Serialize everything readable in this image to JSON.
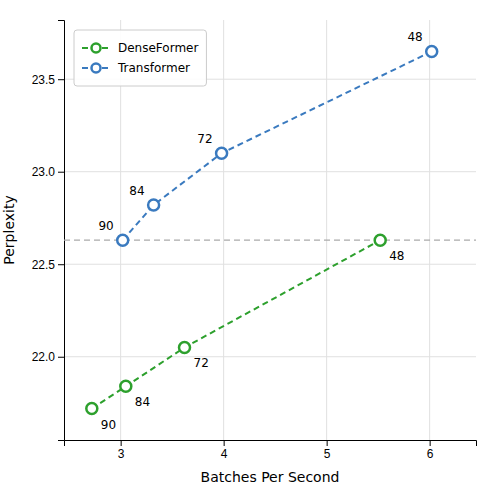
{
  "chart_data": {
    "type": "line",
    "xlabel": "Batches Per Second",
    "ylabel": "Perplexity",
    "series": [
      {
        "name": "DenseFormer",
        "color": "#2da02d",
        "x": [
          2.72,
          3.05,
          3.62,
          5.52
        ],
        "values": [
          21.72,
          21.84,
          22.05,
          22.63
        ],
        "point_labels": [
          "90",
          "84",
          "72",
          "48"
        ],
        "line_style": "dashed",
        "marker": "circle"
      },
      {
        "name": "Transformer",
        "color": "#3a7abf",
        "x": [
          3.02,
          3.32,
          3.98,
          6.02
        ],
        "values": [
          22.63,
          22.82,
          23.1,
          23.65
        ],
        "point_labels": [
          "90",
          "84",
          "72",
          "48"
        ],
        "line_style": "dashed",
        "marker": "circle"
      }
    ],
    "reference_lines": [
      {
        "y": 22.63,
        "color": "#aaaaaa",
        "line_style": "dashed"
      }
    ],
    "xlim": [
      2.45,
      6.45
    ],
    "ylim": [
      21.55,
      23.82
    ],
    "xticks": [
      3,
      4,
      5,
      6
    ],
    "yticks": [
      {
        "value": 22,
        "label": "22.0"
      },
      22.5,
      {
        "value": 23,
        "label": "23.0"
      },
      23.5
    ],
    "grid": true,
    "legend": "upper left"
  }
}
